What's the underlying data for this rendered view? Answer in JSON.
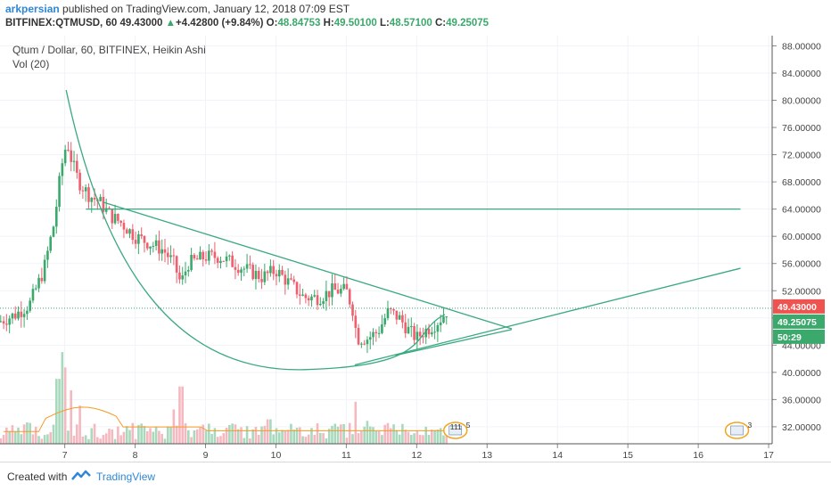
{
  "header": {
    "author": "arkpersian",
    "published_text": " published on TradingView.com, January 12, 2018 07:09 EST",
    "symbol": "BITFINEX:QTMUSD, 60",
    "last": "49.43000",
    "change_arrow": "▲",
    "change": "+4.42800 (+9.84%)",
    "o_label": "O:",
    "o": "48.84753",
    "h_label": "H:",
    "h": "49.50100",
    "l_label": "L:",
    "l": "48.57100",
    "c_label": "C:",
    "c": "49.25075"
  },
  "chart_data": {
    "type": "candlestick",
    "title": "Qtum / Dollar, 60, BITFINEX, Heikin Ashi",
    "volume_label": "Vol (20)",
    "x_ticks": [
      "7",
      "8",
      "9",
      "10",
      "11",
      "12",
      "13",
      "14",
      "15",
      "16",
      "17"
    ],
    "x_range": [
      6.08,
      17.05
    ],
    "y_ticks": [
      "88.00000",
      "84.00000",
      "80.00000",
      "76.00000",
      "72.00000",
      "68.00000",
      "64.00000",
      "60.00000",
      "56.00000",
      "52.00000",
      "48.00000",
      "44.00000",
      "40.00000",
      "36.00000",
      "32.00000"
    ],
    "y_range": [
      29.5,
      89.5
    ],
    "price_path": [
      [
        6.08,
        47.5
      ],
      [
        6.3,
        48.5
      ],
      [
        6.5,
        50
      ],
      [
        6.7,
        55
      ],
      [
        6.85,
        62
      ],
      [
        6.95,
        70
      ],
      [
        7.03,
        74
      ],
      [
        7.1,
        71
      ],
      [
        7.2,
        68
      ],
      [
        7.35,
        66
      ],
      [
        7.5,
        65
      ],
      [
        7.65,
        63
      ],
      [
        7.8,
        62
      ],
      [
        8.0,
        60
      ],
      [
        8.2,
        59
      ],
      [
        8.4,
        58
      ],
      [
        8.55,
        56
      ],
      [
        8.65,
        53
      ],
      [
        8.75,
        56
      ],
      [
        9.0,
        57
      ],
      [
        9.2,
        57
      ],
      [
        9.4,
        56
      ],
      [
        9.6,
        55
      ],
      [
        9.8,
        54
      ],
      [
        10.0,
        55
      ],
      [
        10.2,
        53
      ],
      [
        10.4,
        51
      ],
      [
        10.6,
        51
      ],
      [
        10.8,
        52
      ],
      [
        11.0,
        52
      ],
      [
        11.1,
        49
      ],
      [
        11.15,
        45
      ],
      [
        11.3,
        45
      ],
      [
        11.45,
        46
      ],
      [
        11.6,
        49
      ],
      [
        11.75,
        48
      ],
      [
        11.9,
        46
      ],
      [
        12.0,
        45
      ],
      [
        12.1,
        46
      ],
      [
        12.25,
        47
      ],
      [
        12.35,
        48
      ],
      [
        12.45,
        49.4
      ]
    ],
    "volume_spikes": [
      {
        "x": 6.9,
        "v": 8.5
      },
      {
        "x": 6.95,
        "v": 12
      },
      {
        "x": 7.02,
        "v": 10
      },
      {
        "x": 7.1,
        "v": 7
      },
      {
        "x": 7.2,
        "v": 5
      },
      {
        "x": 8.55,
        "v": 4.5
      },
      {
        "x": 8.65,
        "v": 7.5
      },
      {
        "x": 9.9,
        "v": 3.2
      },
      {
        "x": 11.12,
        "v": 5.5
      },
      {
        "x": 11.3,
        "v": 3
      }
    ],
    "drawings": {
      "horizontal_line": {
        "x1": 7.3,
        "x2": 16.6,
        "y": 64
      },
      "descending_line": {
        "x1": 7.55,
        "x2": 13.35,
        "y1": 65,
        "y2": 46.4
      },
      "ascending_line": {
        "x1": 11.12,
        "x2": 16.6,
        "y1": 41.1,
        "y2": 55.3
      },
      "ascending_line_2": {
        "x1": 11.7,
        "x2": 13.35,
        "y1": 42.5,
        "y2": 46.3
      },
      "arc": {
        "x_start": 7.02,
        "y_start": 81.5,
        "x_min": 10.4,
        "y_min": 40.4,
        "x_end": 12.4,
        "y_end": 48.5
      }
    },
    "price_labels": {
      "last": "49.43000",
      "close": "49.25075",
      "countdown": "50:29",
      "last_value": 49.43,
      "close_value": 49.25075
    },
    "event_badges": [
      {
        "text": "111",
        "count": "5"
      },
      {
        "text": "",
        "count": "3"
      }
    ],
    "colors": {
      "up": "#3aa96b",
      "down": "#ef5f6d",
      "line": "#3aa981",
      "last": "#ef5350",
      "close": "#3aa96b"
    }
  },
  "footer": {
    "created": "Created with",
    "brand": "TradingView"
  }
}
